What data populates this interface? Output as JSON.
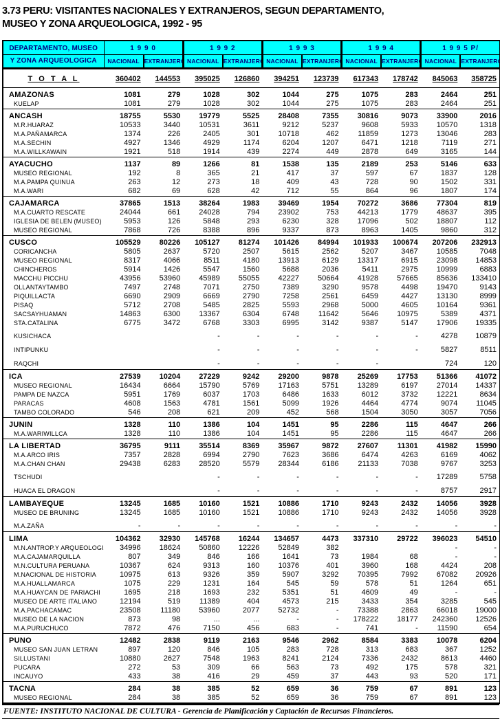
{
  "title": {
    "line1": "3.73   PERU: VISITANTES NACIONALES Y EXTRANJEROS, SEGUN DEPARTAMENTO,",
    "line2": "MUSEO Y ZONA ARQUEOLOGICA, 1992 - 95"
  },
  "header": {
    "stub_line1": "DEPARTAMENTO, MUSEO",
    "stub_line2": "Y ZONA ARQUEOLOGICA",
    "years": [
      "1 9 9 0",
      "1 9 9 2",
      "1 9 9 3",
      "1 9 9 4",
      "1 9 9 5  P/"
    ],
    "sub_nacional": "NACIONAL",
    "sub_extranjero": "EXTRANJERO"
  },
  "colors": {
    "header_bg": "#00FFFF",
    "header_text": "#000080",
    "border": "#000000"
  },
  "total_row": {
    "label": "T O T A L",
    "values": [
      "360402",
      "144553",
      "395025",
      "126860",
      "394251",
      "123739",
      "617343",
      "178742",
      "845063",
      "358725"
    ]
  },
  "rows": [
    {
      "label": "AMAZONAS",
      "type": "dept",
      "values": [
        "1081",
        "279",
        "1028",
        "302",
        "1044",
        "275",
        "1075",
        "283",
        "2464",
        "251"
      ]
    },
    {
      "label": "KUELAP",
      "type": "sub",
      "values": [
        "1081",
        "279",
        "1028",
        "302",
        "1044",
        "275",
        "1075",
        "283",
        "2464",
        "251"
      ]
    },
    {
      "label": "ANCASH",
      "type": "dept",
      "values": [
        "18755",
        "5530",
        "19779",
        "5525",
        "28408",
        "7355",
        "30816",
        "9073",
        "33900",
        "2016"
      ]
    },
    {
      "label": "M.R.HUARAZ",
      "type": "sub",
      "values": [
        "10533",
        "3440",
        "10531",
        "3611",
        "9212",
        "5237",
        "9608",
        "5933",
        "10570",
        "1318"
      ]
    },
    {
      "label": "M.A.PAÑAMARCA",
      "type": "sub",
      "values": [
        "1374",
        "226",
        "2405",
        "301",
        "10718",
        "462",
        "11859",
        "1273",
        "13046",
        "283"
      ]
    },
    {
      "label": "M.A.SECHIN",
      "type": "sub",
      "values": [
        "4927",
        "1346",
        "4929",
        "1174",
        "6204",
        "1207",
        "6471",
        "1218",
        "7119",
        "271"
      ]
    },
    {
      "label": "M.A.WILLKAWAIN",
      "type": "sub",
      "values": [
        "1921",
        "518",
        "1914",
        "439",
        "2274",
        "449",
        "2878",
        "649",
        "3165",
        "144"
      ]
    },
    {
      "label": "AYACUCHO",
      "type": "dept",
      "values": [
        "1137",
        "89",
        "1266",
        "81",
        "1538",
        "135",
        "2189",
        "253",
        "5146",
        "633"
      ]
    },
    {
      "label": "MUSEO REGIONAL",
      "type": "sub",
      "values": [
        "192",
        "8",
        "365",
        "21",
        "417",
        "37",
        "597",
        "67",
        "1837",
        "128"
      ]
    },
    {
      "label": "M.A.PAMPA QUINUA",
      "type": "sub",
      "values": [
        "263",
        "12",
        "273",
        "18",
        "409",
        "43",
        "728",
        "90",
        "1502",
        "331"
      ]
    },
    {
      "label": "M.A.WARI",
      "type": "sub",
      "values": [
        "682",
        "69",
        "628",
        "42",
        "712",
        "55",
        "864",
        "96",
        "1807",
        "174"
      ]
    },
    {
      "label": "CAJAMARCA",
      "type": "dept",
      "values": [
        "37865",
        "1513",
        "38264",
        "1983",
        "39469",
        "1954",
        "70272",
        "3686",
        "77304",
        "819"
      ]
    },
    {
      "label": "M.A.CUARTO RESCATE",
      "type": "sub",
      "values": [
        "24044",
        "661",
        "24028",
        "794",
        "23902",
        "753",
        "44213",
        "1779",
        "48637",
        "395"
      ]
    },
    {
      "label": "IGLESIA DE BELEN (MUSEO)",
      "type": "sub",
      "values": [
        "5953",
        "126",
        "5848",
        "293",
        "6230",
        "328",
        "17096",
        "502",
        "18807",
        "112"
      ]
    },
    {
      "label": "MUSEO REGIONAL",
      "type": "sub",
      "values": [
        "7868",
        "726",
        "8388",
        "896",
        "9337",
        "873",
        "8963",
        "1405",
        "9860",
        "312"
      ]
    },
    {
      "label": "CUSCO",
      "type": "dept",
      "values": [
        "105529",
        "80226",
        "105127",
        "81274",
        "101426",
        "84994",
        "101933",
        "100674",
        "207206",
        "232913"
      ]
    },
    {
      "label": "CORICANCHA",
      "type": "sub",
      "values": [
        "5805",
        "2637",
        "5720",
        "2507",
        "5615",
        "2562",
        "5207",
        "3467",
        "10585",
        "7048"
      ]
    },
    {
      "label": "MUSEO REGIONAL",
      "type": "sub",
      "values": [
        "8317",
        "4066",
        "8511",
        "4180",
        "13913",
        "6129",
        "13317",
        "6915",
        "23098",
        "14853"
      ]
    },
    {
      "label": "CHINCHEROS",
      "type": "sub",
      "values": [
        "5914",
        "1426",
        "5547",
        "1560",
        "5688",
        "2036",
        "5411",
        "2975",
        "10999",
        "6883"
      ]
    },
    {
      "label": "MACCHU PICCHU",
      "type": "sub",
      "values": [
        "43956",
        "53960",
        "45989",
        "55055",
        "42227",
        "50664",
        "41928",
        "57665",
        "85636",
        "133410"
      ]
    },
    {
      "label": "OLLANTAYTAMBO",
      "type": "sub",
      "values": [
        "7497",
        "2748",
        "7071",
        "2750",
        "7389",
        "3290",
        "9578",
        "4498",
        "19470",
        "9143"
      ]
    },
    {
      "label": "PIQUILLACTA",
      "type": "sub",
      "values": [
        "6690",
        "2909",
        "6669",
        "2790",
        "7258",
        "2561",
        "6459",
        "4427",
        "13130",
        "8999"
      ]
    },
    {
      "label": "PISAQ",
      "type": "sub",
      "values": [
        "5712",
        "2708",
        "5485",
        "2825",
        "5593",
        "2968",
        "5000",
        "4605",
        "10164",
        "9361"
      ]
    },
    {
      "label": "SACSAYHUAMAN",
      "type": "sub",
      "values": [
        "14863",
        "6300",
        "13367",
        "6304",
        "6748",
        "11642",
        "5646",
        "10975",
        "5389",
        "4371"
      ]
    },
    {
      "label": "STA.CATALINA",
      "type": "sub",
      "values": [
        "6775",
        "3472",
        "6768",
        "3303",
        "6995",
        "3142",
        "9387",
        "5147",
        "17906",
        "19335"
      ]
    },
    {
      "label": "KUSICHACA",
      "type": "sub",
      "sp": true,
      "values": [
        "",
        "",
        "-",
        "-",
        "-",
        "-",
        "-",
        "-",
        "4278",
        "10879"
      ]
    },
    {
      "label": "INTIPUNKU",
      "type": "sub",
      "sp": true,
      "values": [
        "",
        "",
        "-",
        "-",
        "-",
        "-",
        "-",
        "-",
        "5827",
        "8511"
      ]
    },
    {
      "label": "RAQCHI",
      "type": "sub",
      "sp": true,
      "values": [
        "",
        "",
        "-",
        "-",
        "-",
        "-",
        "-",
        "",
        "724",
        "120"
      ]
    },
    {
      "label": "ICA",
      "type": "dept",
      "values": [
        "27539",
        "10204",
        "27229",
        "9242",
        "29200",
        "9878",
        "25269",
        "17753",
        "51366",
        "41072"
      ]
    },
    {
      "label": "MUSEO REGIONAL",
      "type": "sub",
      "values": [
        "16434",
        "6664",
        "15790",
        "5769",
        "17163",
        "5751",
        "13289",
        "6197",
        "27014",
        "14337"
      ]
    },
    {
      "label": "PAMPA DE NAZCA",
      "type": "sub",
      "values": [
        "5951",
        "1769",
        "6037",
        "1703",
        "6486",
        "1633",
        "6012",
        "3732",
        "12221",
        "8634"
      ]
    },
    {
      "label": "PARACAS",
      "type": "sub",
      "values": [
        "4608",
        "1563",
        "4781",
        "1561",
        "5099",
        "1926",
        "4464",
        "4774",
        "9074",
        "11045"
      ]
    },
    {
      "label": "TAMBO COLORADO",
      "type": "sub",
      "values": [
        "546",
        "208",
        "621",
        "209",
        "452",
        "568",
        "1504",
        "3050",
        "3057",
        "7056"
      ]
    },
    {
      "label": "JUNIN",
      "type": "dept",
      "values": [
        "1328",
        "110",
        "1386",
        "104",
        "1451",
        "95",
        "2286",
        "115",
        "4647",
        "266"
      ]
    },
    {
      "label": "M.A.WARIWILLCA",
      "type": "sub",
      "values": [
        "1328",
        "110",
        "1386",
        "104",
        "1451",
        "95",
        "2286",
        "115",
        "4647",
        "266"
      ]
    },
    {
      "label": "LA LIBERTAD",
      "type": "dept",
      "values": [
        "36795",
        "9111",
        "35514",
        "8369",
        "35967",
        "9872",
        "27607",
        "11301",
        "41982",
        "15990"
      ]
    },
    {
      "label": "M.A.ARCO IRIS",
      "type": "sub",
      "values": [
        "7357",
        "2828",
        "6994",
        "2790",
        "7623",
        "3686",
        "6474",
        "4263",
        "6169",
        "4062"
      ]
    },
    {
      "label": "M.A.CHAN CHAN",
      "type": "sub",
      "values": [
        "29438",
        "6283",
        "28520",
        "5579",
        "28344",
        "6186",
        "21133",
        "7038",
        "9767",
        "3253"
      ]
    },
    {
      "label": "TSCHUDI",
      "type": "sub",
      "sp": true,
      "values": [
        "",
        "",
        "-",
        "-",
        "-",
        "-",
        "-",
        "-",
        "17289",
        "5758"
      ]
    },
    {
      "label": "HUACA EL DRAGON",
      "type": "sub",
      "sp": true,
      "values": [
        "",
        "",
        "-",
        "-",
        "-",
        "-",
        "-",
        "-",
        "8757",
        "2917"
      ]
    },
    {
      "label": "LAMBAYEQUE",
      "type": "dept",
      "values": [
        "13245",
        "1685",
        "10160",
        "1521",
        "10886",
        "1710",
        "9243",
        "2432",
        "14056",
        "3928"
      ]
    },
    {
      "label": "MUSEO DE BRUNING",
      "type": "sub",
      "values": [
        "13245",
        "1685",
        "10160",
        "1521",
        "10886",
        "1710",
        "9243",
        "2432",
        "14056",
        "3928"
      ]
    },
    {
      "label": "M.A.ZAÑA",
      "type": "sub",
      "sp": true,
      "values": [
        "-",
        "-",
        "-",
        "-",
        "-",
        "-",
        "-",
        "-",
        "-",
        "-"
      ]
    },
    {
      "label": "LIMA",
      "type": "dept",
      "values": [
        "104362",
        "32930",
        "145768",
        "16244",
        "134657",
        "4473",
        "337310",
        "29722",
        "396023",
        "54510"
      ]
    },
    {
      "label": "M.N.ANTROP.Y ARQUEOLOGIA",
      "type": "sub",
      "values": [
        "34996",
        "18624",
        "50860",
        "12226",
        "52849",
        "382",
        "",
        "",
        "-",
        "-"
      ]
    },
    {
      "label": "M.A.CAJAMARQUILLA",
      "type": "sub",
      "values": [
        "807",
        "349",
        "846",
        "166",
        "1641",
        "73",
        "1984",
        "68",
        "-",
        "-"
      ]
    },
    {
      "label": "M.N.CULTURA PERUANA",
      "type": "sub",
      "values": [
        "10367",
        "624",
        "9313",
        "160",
        "10376",
        "401",
        "3960",
        "168",
        "4424",
        "208"
      ]
    },
    {
      "label": "M.NACIONAL DE HISTORIA",
      "type": "sub",
      "values": [
        "10975",
        "613",
        "9326",
        "359",
        "5907",
        "3292",
        "70395",
        "7992",
        "67082",
        "20926"
      ]
    },
    {
      "label": "M.A.HUALLAMARCA",
      "type": "sub",
      "values": [
        "1075",
        "229",
        "1231",
        "164",
        "545",
        "59",
        "578",
        "51",
        "1264",
        "651"
      ]
    },
    {
      "label": "M.A.HUAYCAN DE PARIACHI",
      "type": "sub",
      "values": [
        "1695",
        "218",
        "1693",
        "232",
        "5351",
        "51",
        "4609",
        "49",
        "-",
        "-"
      ]
    },
    {
      "label": "MUSEO DE ARTE ITALIANO",
      "type": "sub",
      "values": [
        "12194",
        "519",
        "11389",
        "404",
        "4573",
        "215",
        "3433",
        "354",
        "3285",
        "545"
      ]
    },
    {
      "label": "M.A.PACHACAMAC",
      "type": "sub",
      "values": [
        "23508",
        "11180",
        "53960",
        "2077",
        "52732",
        "-",
        "73388",
        "2863",
        "66018",
        "19000"
      ]
    },
    {
      "label": "MUSEO DE LA NACION",
      "type": "sub",
      "values": [
        "873",
        "98",
        "...",
        "...",
        "-",
        "-",
        "178222",
        "18177",
        "242360",
        "12526"
      ]
    },
    {
      "label": "M.A.PURUCHUCO",
      "type": "sub",
      "values": [
        "7872",
        "476",
        "7150",
        "456",
        "683",
        "-",
        "741",
        "-",
        "11590",
        "654"
      ]
    },
    {
      "label": "PUNO",
      "type": "dept",
      "values": [
        "12482",
        "2838",
        "9119",
        "2163",
        "9546",
        "2962",
        "8584",
        "3383",
        "10078",
        "6204"
      ]
    },
    {
      "label": "MUSEO SAN JUAN LETRAN",
      "type": "sub",
      "values": [
        "897",
        "120",
        "846",
        "105",
        "283",
        "728",
        "313",
        "683",
        "367",
        "1252"
      ]
    },
    {
      "label": "SILLUSTANI",
      "type": "sub",
      "values": [
        "10880",
        "2627",
        "7548",
        "1963",
        "8241",
        "2124",
        "7336",
        "2432",
        "8613",
        "4460"
      ]
    },
    {
      "label": "PUCARA",
      "type": "sub",
      "values": [
        "272",
        "53",
        "309",
        "66",
        "563",
        "73",
        "492",
        "175",
        "578",
        "321"
      ]
    },
    {
      "label": "INCAUYO",
      "type": "sub",
      "values": [
        "433",
        "38",
        "416",
        "29",
        "459",
        "37",
        "443",
        "93",
        "520",
        "171"
      ]
    },
    {
      "label": "TACNA",
      "type": "dept",
      "values": [
        "284",
        "38",
        "385",
        "52",
        "659",
        "36",
        "759",
        "67",
        "891",
        "123"
      ]
    },
    {
      "label": "MUSEO REGIONAL",
      "type": "sub",
      "values": [
        "284",
        "38",
        "385",
        "52",
        "659",
        "36",
        "759",
        "67",
        "891",
        "123"
      ]
    }
  ],
  "footer": "FUENTE: INSTITUTO NACIONAL DE CULTURA - Gerencia de Planificación y Captación de Recursos Financieros."
}
